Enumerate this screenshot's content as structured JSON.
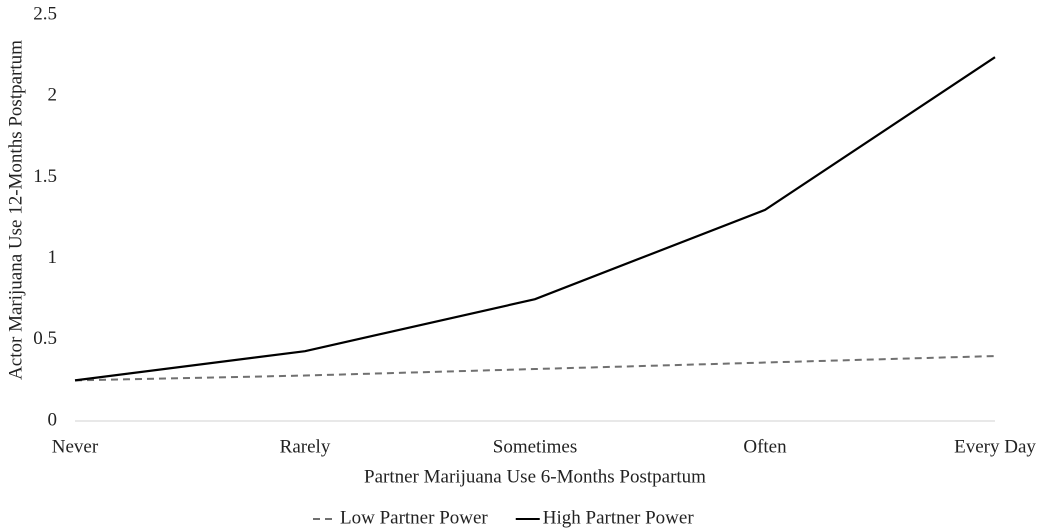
{
  "chart_data": {
    "type": "line",
    "x_label": "Partner Marijuana Use 6-Months Postpartum",
    "y_label": "Actor Marijuana Use 12-Months Postpartum",
    "categories": [
      "Never",
      "Rarely",
      "Sometimes",
      "Often",
      "Every Day"
    ],
    "series": [
      {
        "name": "Low Partner Power",
        "color": "#707070",
        "style": "dashed",
        "values": [
          0.25,
          0.28,
          0.32,
          0.36,
          0.4
        ]
      },
      {
        "name": "High Partner Power",
        "color": "#000000",
        "style": "solid",
        "values": [
          0.25,
          0.43,
          0.75,
          1.3,
          2.24
        ]
      }
    ],
    "ylim": [
      0,
      2.5
    ],
    "yticks": [
      0,
      0.5,
      1,
      1.5,
      2,
      2.5
    ],
    "grid": false,
    "legend": "bottom"
  }
}
